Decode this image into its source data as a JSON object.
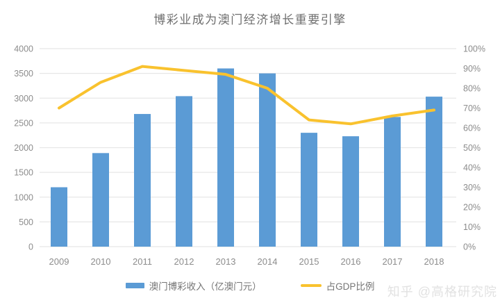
{
  "watermark": "知乎 @高格研究院",
  "colors": {
    "background": "#FFFFFF",
    "bar": "#5B9BD5",
    "line": "#F9C22E",
    "grid": "#E7E7E7",
    "axis_text": "#8C8C8C",
    "title_text": "#6E6E6E",
    "legend_text": "#757575",
    "watermark_text": "#E2E2E2"
  },
  "chart_data": {
    "type": "bar+line combo",
    "title": "博彩业成为澳门经济增长重要引擎",
    "categories": [
      "2009",
      "2010",
      "2011",
      "2012",
      "2013",
      "2014",
      "2015",
      "2016",
      "2017",
      "2018"
    ],
    "series": [
      {
        "name": "澳门博彩收入（亿澳门元）",
        "type": "bar",
        "axis": "left",
        "values": [
          1200,
          1890,
          2680,
          3040,
          3600,
          3500,
          2300,
          2230,
          2620,
          3030
        ]
      },
      {
        "name": "占GDP比例",
        "type": "line",
        "axis": "right",
        "values": [
          70,
          83,
          91,
          89,
          87,
          80,
          64,
          62,
          66,
          69
        ],
        "unit": "%"
      }
    ],
    "left_axis": {
      "min": 0,
      "max": 4000,
      "step": 500
    },
    "right_axis": {
      "min": 0,
      "max": 100,
      "step": 10,
      "suffix": "%"
    },
    "grid": "horizontal-only",
    "legend_position": "bottom"
  }
}
